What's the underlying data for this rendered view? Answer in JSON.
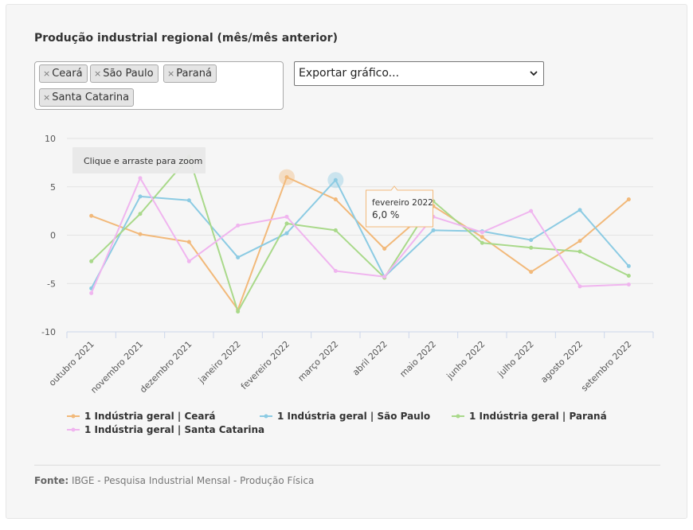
{
  "title": "Produção industrial regional (mês/mês anterior)",
  "filter": {
    "tags": [
      "Ceará",
      "São Paulo",
      "Paraná",
      "Santa Catarina"
    ],
    "remove_glyph": "×"
  },
  "export": {
    "label": "Exportar gráfico...",
    "chevron": "⌄"
  },
  "chart_hint": "Clique e arraste para zoom",
  "tooltip": {
    "title": "fevereiro 2022",
    "value": "6,0 %"
  },
  "source": {
    "label": "Fonte:",
    "text": "IBGE - Pesquisa Industrial Mensal - Produção Física"
  },
  "colors": {
    "ceara": "#f2b97a",
    "sao_paulo": "#8ccbe3",
    "parana": "#a9d98a",
    "santa_catarina": "#f0b5ef",
    "grid": "#e3e3e3",
    "axis": "#ccd6eb"
  },
  "chart_data": {
    "type": "line",
    "title": "Produção industrial regional (mês/mês anterior)",
    "xlabel": "",
    "ylabel": "",
    "ylim": [
      -10,
      10
    ],
    "yticks": [
      10,
      5,
      0,
      -5,
      -10
    ],
    "grid": true,
    "legend_position": "bottom",
    "categories": [
      "outubro 2021",
      "novembro 2021",
      "dezembro 2021",
      "janeiro 2022",
      "fevereiro 2022",
      "março 2022",
      "abril 2022",
      "maio 2022",
      "junho 2022",
      "julho 2022",
      "agosto 2022",
      "setembro 2022"
    ],
    "series": [
      {
        "name": "1 Indústria geral | Ceará",
        "color_key": "ceara",
        "values": [
          2.0,
          0.1,
          -0.7,
          -7.7,
          6.0,
          3.7,
          -1.4,
          3.0,
          -0.2,
          -3.8,
          -0.6,
          3.7
        ]
      },
      {
        "name": "1 Indústria geral | São Paulo",
        "color_key": "sao_paulo",
        "values": [
          -5.5,
          4.0,
          3.6,
          -2.3,
          0.2,
          5.7,
          -4.3,
          0.5,
          0.4,
          -0.5,
          2.6,
          -3.2
        ]
      },
      {
        "name": "1 Indústria geral | Paraná",
        "color_key": "parana",
        "values": [
          -2.7,
          2.2,
          8.1,
          -7.9,
          1.2,
          0.5,
          -4.4,
          3.5,
          -0.8,
          -1.3,
          -1.7,
          -4.2
        ]
      },
      {
        "name": "1 Indústria geral | Santa Catarina",
        "color_key": "santa_catarina",
        "values": [
          -6.0,
          5.9,
          -2.7,
          1.0,
          1.9,
          -3.7,
          -4.3,
          1.9,
          0.3,
          2.5,
          -5.3,
          -5.1
        ]
      }
    ],
    "highlighted": [
      {
        "series_index": 0,
        "point_index": 4
      },
      {
        "series_index": 1,
        "point_index": 5
      }
    ]
  }
}
